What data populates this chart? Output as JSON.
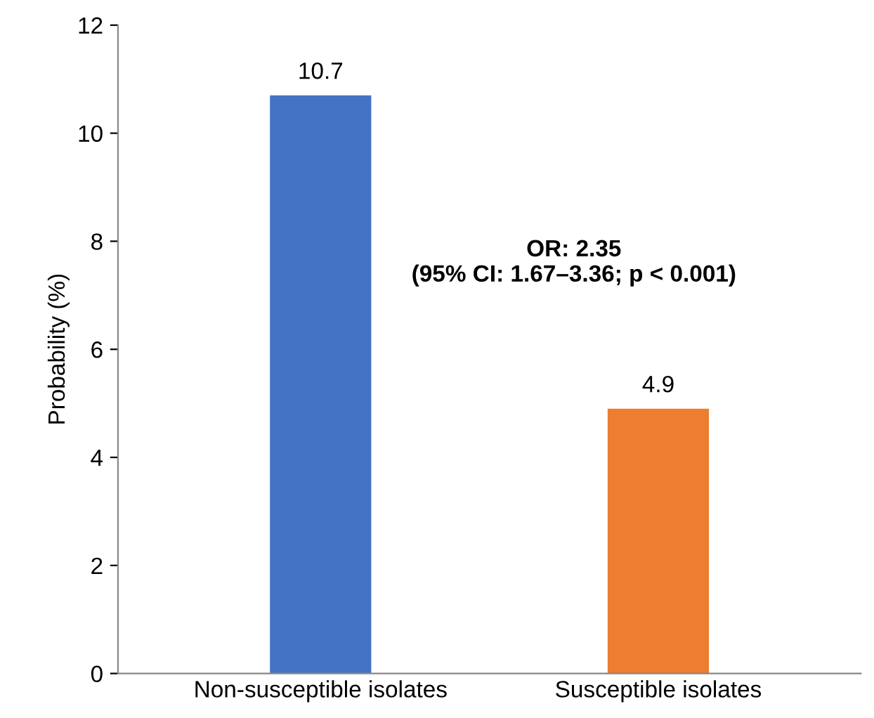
{
  "chart_data": {
    "type": "bar",
    "ylabel": "Probability (%)",
    "categories": [
      "Non-susceptible isolates",
      "Susceptible isolates"
    ],
    "values": [
      10.7,
      4.9
    ],
    "colors": [
      "#4472c4",
      "#ed7d31"
    ],
    "ylim": [
      0,
      12
    ],
    "yticks": [
      0,
      2,
      4,
      6,
      8,
      10,
      12
    ],
    "data_labels": true,
    "grid": false,
    "legend": false,
    "annotations": [
      "OR: 2.35\n(95% CI: 1.67–3.36; p < 0.001)"
    ]
  }
}
